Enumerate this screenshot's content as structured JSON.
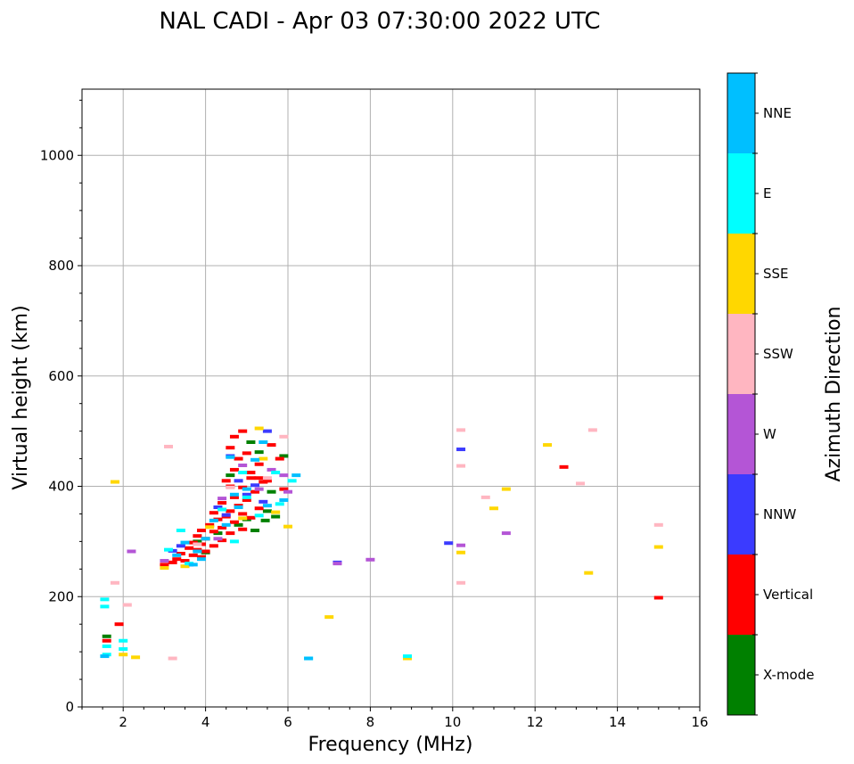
{
  "chart_data": {
    "type": "scatter",
    "title": "NAL CADI - Apr 03 07:30:00 2022 UTC",
    "xlabel": "Frequency (MHz)",
    "ylabel": "Virtual height (km)",
    "xlim": [
      1,
      16
    ],
    "ylim": [
      0,
      1120
    ],
    "xticks": [
      2,
      4,
      6,
      8,
      10,
      12,
      14,
      16
    ],
    "yticks": [
      0,
      200,
      400,
      600,
      800,
      1000
    ],
    "grid": true,
    "colorbar": {
      "label": "Azimuth Direction",
      "categories": [
        {
          "name": "X-mode",
          "color": "#008000"
        },
        {
          "name": "Vertical",
          "color": "#ff0000"
        },
        {
          "name": "NNW",
          "color": "#3b3bff"
        },
        {
          "name": "W",
          "color": "#b455d6"
        },
        {
          "name": "SSW",
          "color": "#ffb6c1"
        },
        {
          "name": "SSE",
          "color": "#ffd700"
        },
        {
          "name": "E",
          "color": "#00ffff"
        },
        {
          "name": "NNE",
          "color": "#00bfff"
        }
      ]
    },
    "series": [
      {
        "name": "X-mode",
        "points": [
          [
            5.3,
            462
          ],
          [
            5.6,
            390
          ],
          [
            5.5,
            355
          ],
          [
            5.0,
            340
          ],
          [
            4.8,
            330
          ],
          [
            5.2,
            320
          ],
          [
            4.3,
            315
          ],
          [
            3.8,
            300
          ],
          [
            4.0,
            280
          ],
          [
            5.7,
            345
          ],
          [
            5.9,
            455
          ],
          [
            1.6,
            128
          ],
          [
            5.1,
            480
          ],
          [
            4.6,
            420
          ],
          [
            5.45,
            338
          ]
        ]
      },
      {
        "name": "Vertical",
        "points": [
          [
            4.9,
            500
          ],
          [
            4.7,
            490
          ],
          [
            4.6,
            470
          ],
          [
            5.0,
            460
          ],
          [
            4.8,
            450
          ],
          [
            5.3,
            440
          ],
          [
            4.7,
            430
          ],
          [
            5.1,
            425
          ],
          [
            5.3,
            415
          ],
          [
            5.4,
            408
          ],
          [
            4.6,
            400
          ],
          [
            4.9,
            398
          ],
          [
            5.2,
            390
          ],
          [
            4.7,
            380
          ],
          [
            5.0,
            375
          ],
          [
            4.4,
            370
          ],
          [
            4.8,
            365
          ],
          [
            5.3,
            360
          ],
          [
            4.6,
            355
          ],
          [
            4.2,
            352
          ],
          [
            4.9,
            350
          ],
          [
            4.5,
            345
          ],
          [
            5.1,
            343
          ],
          [
            4.3,
            340
          ],
          [
            4.7,
            335
          ],
          [
            4.1,
            330
          ],
          [
            4.4,
            325
          ],
          [
            4.9,
            322
          ],
          [
            3.9,
            320
          ],
          [
            4.2,
            318
          ],
          [
            4.6,
            315
          ],
          [
            3.8,
            310
          ],
          [
            4.0,
            305
          ],
          [
            4.4,
            302
          ],
          [
            3.7,
            298
          ],
          [
            3.9,
            295
          ],
          [
            4.2,
            292
          ],
          [
            3.6,
            288
          ],
          [
            3.8,
            285
          ],
          [
            4.0,
            282
          ],
          [
            3.4,
            278
          ],
          [
            3.7,
            275
          ],
          [
            3.9,
            272
          ],
          [
            3.3,
            268
          ],
          [
            3.5,
            265
          ],
          [
            3.2,
            262
          ],
          [
            3.0,
            258
          ],
          [
            5.6,
            475
          ],
          [
            5.8,
            450
          ],
          [
            5.5,
            410
          ],
          [
            5.9,
            395
          ],
          [
            5.1,
            415
          ],
          [
            4.5,
            410
          ],
          [
            1.9,
            150
          ],
          [
            1.6,
            120
          ],
          [
            12.7,
            435
          ],
          [
            15.0,
            198
          ]
        ]
      },
      {
        "name": "NNW",
        "points": [
          [
            5.5,
            500
          ],
          [
            4.6,
            455
          ],
          [
            5.0,
            385
          ],
          [
            4.3,
            362
          ],
          [
            3.4,
            292
          ],
          [
            3.2,
            283
          ],
          [
            7.2,
            262
          ],
          [
            10.2,
            467
          ],
          [
            9.9,
            297
          ],
          [
            4.8,
            410
          ],
          [
            5.4,
            372
          ],
          [
            3.6,
            258
          ],
          [
            4.5,
            348
          ],
          [
            5.2,
            402
          ]
        ]
      },
      {
        "name": "W",
        "points": [
          [
            6.0,
            390
          ],
          [
            5.9,
            420
          ],
          [
            10.2,
            293
          ],
          [
            11.3,
            315
          ],
          [
            7.2,
            260
          ],
          [
            8.0,
            267
          ],
          [
            2.2,
            282
          ],
          [
            4.3,
            305
          ],
          [
            4.9,
            438
          ],
          [
            5.6,
            430
          ],
          [
            3.0,
            265
          ],
          [
            5.3,
            395
          ],
          [
            4.4,
            378
          ]
        ]
      },
      {
        "name": "SSW",
        "points": [
          [
            1.8,
            225
          ],
          [
            2.1,
            185
          ],
          [
            3.1,
            472
          ],
          [
            5.9,
            490
          ],
          [
            10.2,
            502
          ],
          [
            10.2,
            437
          ],
          [
            10.8,
            380
          ],
          [
            13.1,
            405
          ],
          [
            13.4,
            502
          ],
          [
            15.0,
            330
          ],
          [
            10.2,
            225
          ],
          [
            3.2,
            88
          ],
          [
            4.6,
            398
          ],
          [
            5.5,
            415
          ],
          [
            3.8,
            295
          ]
        ]
      },
      {
        "name": "SSE",
        "points": [
          [
            5.3,
            505
          ],
          [
            6.0,
            327
          ],
          [
            3.0,
            252
          ],
          [
            3.5,
            255
          ],
          [
            1.8,
            408
          ],
          [
            2.3,
            90
          ],
          [
            2.0,
            95
          ],
          [
            7.0,
            163
          ],
          [
            8.9,
            88
          ],
          [
            10.2,
            280
          ],
          [
            11.0,
            360
          ],
          [
            11.3,
            395
          ],
          [
            12.3,
            475
          ],
          [
            13.3,
            243
          ],
          [
            15.0,
            290
          ],
          [
            5.4,
            450
          ],
          [
            4.1,
            326
          ],
          [
            4.9,
            342
          ],
          [
            5.7,
            353
          ]
        ]
      },
      {
        "name": "E",
        "points": [
          [
            6.1,
            410
          ],
          [
            5.7,
            425
          ],
          [
            4.7,
            300
          ],
          [
            3.4,
            320
          ],
          [
            3.1,
            285
          ],
          [
            1.55,
            195
          ],
          [
            1.55,
            182
          ],
          [
            1.6,
            110
          ],
          [
            1.6,
            95
          ],
          [
            2.0,
            120
          ],
          [
            2.0,
            105
          ],
          [
            6.5,
            88
          ],
          [
            8.9,
            92
          ],
          [
            5.0,
            380
          ],
          [
            4.4,
            358
          ],
          [
            5.8,
            368
          ],
          [
            3.6,
            260
          ],
          [
            4.9,
            425
          ],
          [
            5.3,
            347
          ]
        ]
      },
      {
        "name": "NNE",
        "points": [
          [
            5.4,
            480
          ],
          [
            6.2,
            420
          ],
          [
            3.7,
            258
          ],
          [
            3.9,
            268
          ],
          [
            3.3,
            275
          ],
          [
            3.5,
            298
          ],
          [
            4.0,
            305
          ],
          [
            4.5,
            330
          ],
          [
            4.7,
            385
          ],
          [
            5.0,
            395
          ],
          [
            5.5,
            365
          ],
          [
            5.9,
            375
          ],
          [
            4.6,
            453
          ],
          [
            5.2,
            448
          ],
          [
            1.55,
            92
          ],
          [
            6.5,
            88
          ],
          [
            4.2,
            338
          ],
          [
            3.8,
            282
          ],
          [
            4.8,
            362
          ]
        ]
      }
    ]
  }
}
